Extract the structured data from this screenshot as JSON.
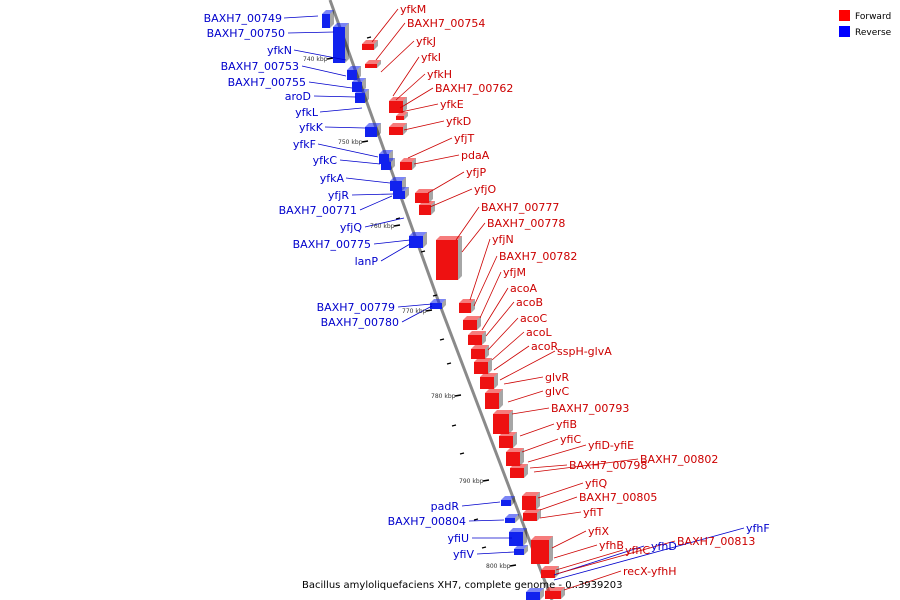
{
  "caption": "Bacillus amyloliquefaciens XH7, complete genome - 0..3939203",
  "legend": [
    {
      "label": "Forward",
      "color": "#ff0000"
    },
    {
      "label": "Reverse",
      "color": "#0000ff"
    }
  ],
  "colors": {
    "forward": "#ee1111",
    "reverse": "#1122ee",
    "backbone": "#8a8a8a",
    "label_forward": "#cc0000",
    "label_reverse": "#0000cc"
  },
  "ticks": [
    "740 kbp",
    "750 kbp",
    "760 kbp",
    "770 kbp",
    "780 kbp",
    "790 kbp",
    "800 kbp"
  ],
  "reverse_genes": [
    "BAXH7_00749",
    "BAXH7_00750",
    "yfkN",
    "BAXH7_00753",
    "BAXH7_00755",
    "aroD",
    "yfkL",
    "yfkK",
    "yfkF",
    "yfkC",
    "yfkA",
    "yfjR",
    "BAXH7_00771",
    "yfjQ",
    "BAXH7_00775",
    "lanP",
    "BAXH7_00779",
    "BAXH7_00780",
    "padR",
    "BAXH7_00804",
    "yfiU",
    "yfiV",
    "yfhD",
    "yfhF"
  ],
  "forward_genes": [
    "yfkM",
    "BAXH7_00754",
    "yfkJ",
    "yfkI",
    "yfkH",
    "BAXH7_00762",
    "yfkE",
    "yfkD",
    "yfjT",
    "pdaA",
    "yfjP",
    "yfjO",
    "BAXH7_00777",
    "BAXH7_00778",
    "yfjN",
    "BAXH7_00782",
    "yfjM",
    "acoA",
    "acoB",
    "acoC",
    "acoL",
    "acoR",
    "sspH-glvA",
    "glvR",
    "glvC",
    "BAXH7_00793",
    "yfiB",
    "yfiC",
    "yfiD-yfiE",
    "BAXH7_00798",
    "BAXH7_00802",
    "yfiQ",
    "BAXH7_00805",
    "yfiT",
    "yfiX",
    "yfhB",
    "yfhC",
    "BAXH7_00813",
    "recX-yfhH"
  ]
}
